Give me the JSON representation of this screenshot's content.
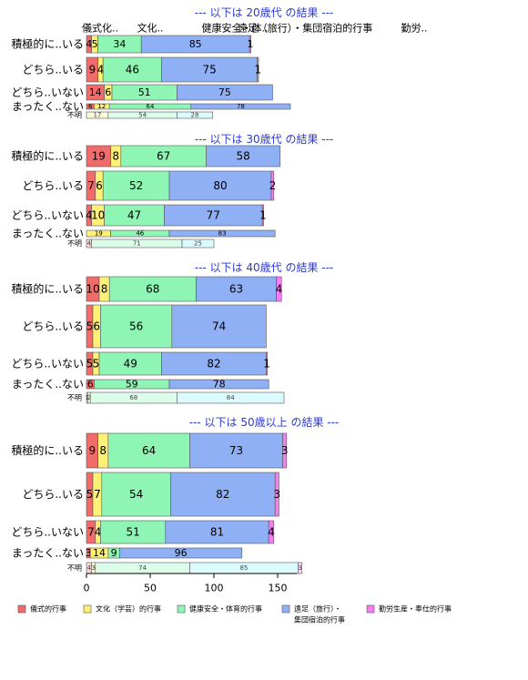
{
  "chart_data": {
    "type": "bar",
    "orientation": "horizontal",
    "stacked": true,
    "xlim": [
      0,
      165
    ],
    "x_ticks": [
      "0",
      "50",
      "100",
      "150"
    ],
    "series_names": [
      "儀式的行事",
      "文化（学芸）的行事",
      "健康安全・体育的行事",
      "遠足（旅行）・集団宿泊的行事",
      "勤労生産・奉仕的行事"
    ],
    "colors": [
      "#f26b6b",
      "#fff176",
      "#8ff5b4",
      "#8fb0f5",
      "#f77ef2"
    ],
    "category_header": [
      "儀式化..",
      "文化..",
      "健康安全・体..",
      "遠足（旅行）・集団宿泊的行事",
      "勤労.."
    ],
    "legend": [
      {
        "label": "儀式的行事",
        "color": "#f26b6b"
      },
      {
        "label": "文化（学芸）的行事",
        "color": "#fff176"
      },
      {
        "label": "健康安全・体育的行事",
        "color": "#8ff5b4"
      },
      {
        "label": "遠足（旅行）・\n集団宿泊的行事",
        "color": "#8fb0f5"
      },
      {
        "label": "勤労生産・奉仕的行事",
        "color": "#f77ef2"
      }
    ],
    "panels": [
      {
        "title": "--- 以下は 20歳代 の結果 ---",
        "rows": [
          {
            "label": "積極的に..いる",
            "values": [
              4,
              5,
              34,
              85,
              1
            ]
          },
          {
            "label": "どちら..いる",
            "values": [
              9,
              4,
              46,
              75,
              1
            ]
          },
          {
            "label": "どちら..いない",
            "values": [
              14,
              6,
              51,
              75,
              0
            ]
          },
          {
            "label": "まったく..ない",
            "values": [
              6,
              12,
              64,
              78,
              0
            ]
          },
          {
            "label": "不明",
            "values": [
              0,
              17,
              54,
              28,
              0
            ]
          }
        ]
      },
      {
        "title": "--- 以下は 30歳代 の結果 ---",
        "rows": [
          {
            "label": "積極的に..いる",
            "values": [
              19,
              8,
              67,
              58,
              0
            ]
          },
          {
            "label": "どちら..いる",
            "values": [
              7,
              6,
              52,
              80,
              2
            ]
          },
          {
            "label": "どちら..いない",
            "values": [
              4,
              10,
              47,
              77,
              1
            ]
          },
          {
            "label": "まったく..ない",
            "values": [
              0,
              19,
              46,
              83,
              0
            ]
          },
          {
            "label": "不明",
            "values": [
              4,
              0,
              71,
              25,
              0
            ]
          }
        ]
      },
      {
        "title": "--- 以下は 40歳代 の結果 ---",
        "rows": [
          {
            "label": "積極的に..いる",
            "values": [
              10,
              8,
              68,
              63,
              4
            ]
          },
          {
            "label": "どちら..いる",
            "values": [
              5,
              6,
              56,
              74,
              0
            ]
          },
          {
            "label": "どちら..いない",
            "values": [
              5,
              5,
              49,
              82,
              1
            ]
          },
          {
            "label": "まったく..ない",
            "values": [
              6,
              0,
              59,
              78,
              0
            ]
          },
          {
            "label": "不明",
            "values": [
              1,
              2,
              68,
              84,
              0
            ]
          }
        ]
      },
      {
        "title": "--- 以下は 50歳以上 の結果 ---",
        "rows": [
          {
            "label": "積極的に..いる",
            "values": [
              9,
              8,
              64,
              73,
              3
            ]
          },
          {
            "label": "どちら..いる",
            "values": [
              5,
              7,
              54,
              82,
              3
            ]
          },
          {
            "label": "どちら..いない",
            "values": [
              7,
              4,
              51,
              81,
              4
            ]
          },
          {
            "label": "まったく..ない",
            "values": [
              3,
              14,
              9,
              96,
              0
            ]
          },
          {
            "label": "不明",
            "values": [
              4,
              3,
              74,
              85,
              3
            ]
          }
        ]
      }
    ]
  }
}
